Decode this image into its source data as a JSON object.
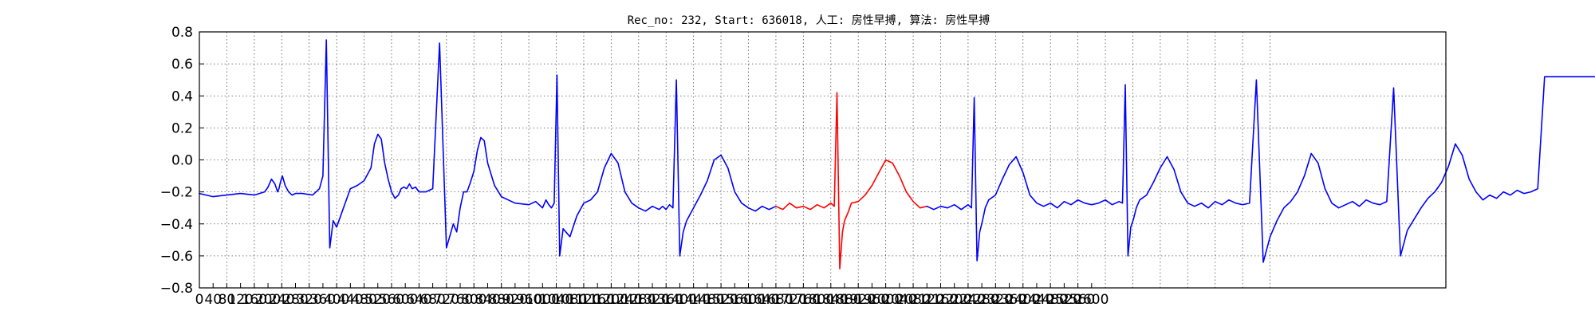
{
  "chart_data": {
    "type": "line",
    "title": "Rec_no: 232, Start: 636018, 人工: 房性早搏, 算法: 房性早搏",
    "xlabel": "",
    "ylabel": "",
    "xlim": [
      0,
      3200
    ],
    "ylim": [
      -0.8,
      0.8
    ],
    "grid": true,
    "yticks": [
      "0.8",
      "0.6",
      "0.4",
      "0.2",
      "0.0",
      "−0.2",
      "−0.4",
      "−0.6",
      "−0.8"
    ],
    "ytick_values": [
      0.8,
      0.6,
      0.4,
      0.2,
      0.0,
      -0.2,
      -0.4,
      -0.6,
      -0.8
    ],
    "xticks": [
      "0",
      "40",
      "80",
      "120",
      "160",
      "200",
      "240",
      "280",
      "320",
      "360",
      "400",
      "440",
      "480",
      "520",
      "560",
      "600",
      "640",
      "680",
      "720",
      "760",
      "800",
      "840",
      "880",
      "920",
      "960",
      "1000",
      "1040",
      "1080",
      "1120",
      "1160",
      "1200",
      "1240",
      "1280",
      "1320",
      "1360",
      "1400",
      "1440",
      "1480",
      "1520",
      "1560",
      "1600",
      "1640",
      "1680",
      "1720",
      "1760",
      "1800",
      "1840",
      "1880",
      "1920",
      "1960",
      "2000",
      "2040",
      "2080",
      "2120",
      "2160",
      "2200",
      "2240",
      "2280",
      "2320",
      "2360",
      "2400",
      "2440",
      "2480",
      "2520",
      "2560",
      "2600"
    ],
    "xtick_values": [
      0,
      40,
      80,
      120,
      160,
      200,
      240,
      280,
      320,
      360,
      400,
      440,
      480,
      520,
      560,
      600,
      640,
      680,
      720,
      760,
      800,
      840,
      880,
      920,
      960,
      1000,
      1040,
      1080,
      1120,
      1160,
      1200,
      1240,
      1280,
      1320,
      1360,
      1400,
      1440,
      1480,
      1520,
      1560,
      1600,
      1640,
      1680,
      1720,
      1760,
      1800,
      1840,
      1880,
      1920,
      1960,
      2000,
      2040,
      2080,
      2120,
      2160,
      2200,
      2240,
      2280,
      2320,
      2360,
      2400,
      2440,
      2480,
      2520,
      2560,
      2600
    ],
    "x_vertical_grid_step": 80,
    "series": [
      {
        "color": "#0000ff",
        "segments": [
          {
            "x": [
              0,
              40,
              80,
              120,
              160,
              190,
              200,
              210,
              220,
              228,
              232,
              236,
              242,
              250,
              260,
              270,
              280,
              300,
              330,
              350,
              360,
              370,
              380,
              390,
              400,
              420,
              440,
              460,
              480,
              500,
              510,
              520,
              530,
              540,
              550,
              560,
              570,
              580,
              588,
              596,
              604,
              612,
              620,
              630,
              640,
              660,
              680,
              700,
              720,
              740,
              750,
              760,
              770,
              780,
              790,
              800,
              810,
              820,
              830,
              840,
              860,
              880,
              900,
              920,
              960,
              980,
              1000,
              1010,
              1018,
              1026,
              1034,
              1042,
              1050,
              1060,
              1080,
              1100,
              1120,
              1140,
              1160,
              1180,
              1200,
              1220,
              1240,
              1260,
              1280,
              1300,
              1320,
              1340,
              1350,
              1360,
              1370,
              1380,
              1390,
              1400,
              1410,
              1420,
              1440,
              1460,
              1480,
              1500,
              1520,
              1540,
              1560,
              1580,
              1600,
              1620,
              1640,
              1660,
              1680
            ],
            "y": [
              -0.21,
              -0.23,
              -0.22,
              -0.21,
              -0.22,
              -0.2,
              -0.17,
              -0.12,
              -0.15,
              -0.2,
              -0.18,
              -0.14,
              -0.1,
              -0.16,
              -0.2,
              -0.22,
              -0.21,
              -0.21,
              -0.22,
              -0.18,
              -0.1,
              0.75,
              -0.55,
              -0.38,
              -0.42,
              -0.3,
              -0.18,
              -0.16,
              -0.13,
              -0.05,
              0.1,
              0.16,
              0.13,
              -0.02,
              -0.12,
              -0.2,
              -0.24,
              -0.22,
              -0.18,
              -0.17,
              -0.18,
              -0.15,
              -0.18,
              -0.17,
              -0.2,
              -0.2,
              -0.18,
              0.73,
              -0.55,
              -0.4,
              -0.45,
              -0.3,
              -0.2,
              -0.2,
              -0.14,
              -0.07,
              0.06,
              0.14,
              0.12,
              -0.02,
              -0.16,
              -0.23,
              -0.25,
              -0.27,
              -0.28,
              -0.26,
              -0.3,
              -0.25,
              -0.28,
              -0.3,
              -0.27,
              0.53,
              -0.6,
              -0.43,
              -0.48,
              -0.35,
              -0.27,
              -0.25,
              -0.2,
              -0.05,
              0.04,
              -0.02,
              -0.2,
              -0.27,
              -0.3,
              -0.32,
              -0.29,
              -0.31,
              -0.29,
              -0.31,
              -0.28,
              -0.3,
              0.5,
              -0.6,
              -0.45,
              -0.38,
              -0.3,
              -0.22,
              -0.13,
              0.0,
              0.03,
              -0.05,
              -0.2,
              -0.27,
              -0.3,
              -0.32,
              -0.29,
              -0.31,
              -0.29
            ]
          }
        ]
      },
      {
        "color": "#ff0000",
        "segments": [
          {
            "x": [
              1680,
              1700,
              1720,
              1740,
              1760,
              1780,
              1800,
              1820,
              1840,
              1850,
              1858,
              1866,
              1874,
              1880,
              1890,
              1900,
              1920,
              1940,
              1960,
              1980,
              2000,
              2020,
              2040,
              2060,
              2080,
              2100,
              2120
            ],
            "y": [
              -0.29,
              -0.31,
              -0.27,
              -0.3,
              -0.29,
              -0.31,
              -0.28,
              -0.3,
              -0.27,
              -0.29,
              0.42,
              -0.68,
              -0.45,
              -0.38,
              -0.33,
              -0.27,
              -0.26,
              -0.22,
              -0.16,
              -0.08,
              0.0,
              -0.02,
              -0.1,
              -0.2,
              -0.26,
              -0.3,
              -0.29
            ]
          }
        ]
      },
      {
        "color": "#0000ff",
        "segments": [
          {
            "x": [
              2120,
              2140,
              2160,
              2180,
              2200,
              2220,
              2240,
              2250,
              2258,
              2266,
              2274,
              2282,
              2290,
              2300,
              2320,
              2340,
              2360,
              2380,
              2400,
              2420,
              2440,
              2460,
              2480,
              2500,
              2520,
              2540,
              2560,
              2580,
              2600,
              2620,
              2640,
              2660,
              2680,
              2690,
              2698,
              2706,
              2714,
              2722,
              2730,
              2740,
              2760,
              2780,
              2800,
              2820,
              2840,
              2860,
              2880,
              2900,
              2920,
              2940,
              2960,
              2980,
              3000,
              3020,
              3040,
              3060,
              3080,
              3100,
              3120,
              3140,
              3160,
              3180,
              3200,
              3220,
              3240,
              3260,
              3280,
              3300,
              3320,
              3340,
              3360,
              3380,
              3400,
              3420,
              3440,
              3460,
              3480,
              3500,
              3520,
              3540,
              3560,
              3580,
              3600,
              3620,
              3640,
              3660,
              3680,
              3700,
              3720,
              3740,
              3760,
              3780,
              3800,
              3820,
              3840,
              3860,
              3880,
              3900,
              3920,
              3940,
              3960,
              3980,
              4000,
              4020,
              4040,
              4060,
              4080,
              4100,
              4120,
              4140,
              4160,
              4180,
              4200,
              4220,
              4240,
              4260,
              4270
            ],
            "y": [
              -0.29,
              -0.31,
              -0.29,
              -0.3,
              -0.28,
              -0.31,
              -0.28,
              -0.3,
              0.39,
              -0.63,
              -0.45,
              -0.38,
              -0.3,
              -0.25,
              -0.22,
              -0.12,
              -0.03,
              0.02,
              -0.08,
              -0.22,
              -0.27,
              -0.29,
              -0.27,
              -0.3,
              -0.26,
              -0.28,
              -0.25,
              -0.27,
              -0.28,
              -0.27,
              -0.25,
              -0.28,
              -0.26,
              -0.27,
              0.47,
              -0.6,
              -0.42,
              -0.37,
              -0.3,
              -0.25,
              -0.22,
              -0.14,
              -0.05,
              0.02,
              -0.06,
              -0.2,
              -0.27,
              -0.29,
              -0.27,
              -0.3,
              -0.26,
              -0.28,
              -0.25,
              -0.27,
              -0.28,
              -0.27,
              0.5,
              -0.64,
              -0.48,
              -0.38,
              -0.3,
              -0.26,
              -0.2,
              -0.1,
              0.04,
              -0.02,
              -0.18,
              -0.27,
              -0.3,
              -0.28,
              -0.26,
              -0.29,
              -0.25,
              -0.27,
              -0.28,
              -0.26,
              0.45,
              -0.6,
              -0.44,
              -0.37,
              -0.3,
              -0.24,
              -0.2,
              -0.14,
              -0.04,
              0.1,
              0.03,
              -0.12,
              -0.2,
              -0.25,
              -0.22,
              -0.24,
              -0.2,
              -0.22,
              -0.19,
              -0.21,
              -0.2,
              -0.18,
              0.52,
              0.52,
              0.52,
              0.52,
              0.52,
              0.52,
              0.52,
              0.52,
              0.52,
              0.52,
              0.52,
              0.52,
              0.52,
              0.52,
              0.52,
              0.52,
              0.52,
              0.52,
              0.52
            ]
          }
        ]
      }
    ]
  }
}
